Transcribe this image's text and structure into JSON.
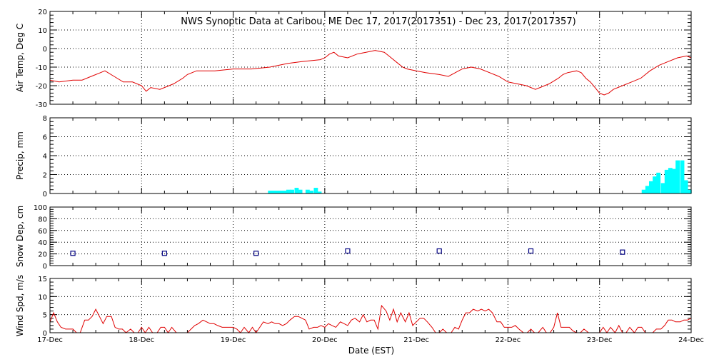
{
  "title": "NWS Synoptic Data at Caribou, ME    Dec 17, 2017(2017351) - Dec 23, 2017(2017357)",
  "x_axis": {
    "label": "Date (EST)",
    "tick_labels": [
      "17-Dec",
      "18-Dec",
      "19-Dec",
      "20-Dec",
      "21-Dec",
      "22-Dec",
      "23-Dec",
      "24-Dec"
    ],
    "range_days": [
      0,
      7
    ]
  },
  "colors": {
    "line": "#e00000",
    "bar": "#00ffff",
    "marker": "#000080",
    "grid": "#000000"
  },
  "chart_data": [
    {
      "type": "line",
      "ylabel": "Air Temp, Deg C",
      "ylim": [
        -30,
        20
      ],
      "yticks": [
        -30,
        -20,
        -10,
        0,
        10,
        20
      ],
      "grid": true,
      "series": [
        {
          "x": [
            0,
            0.1,
            0.25,
            0.35,
            0.45,
            0.55,
            0.6,
            0.7,
            0.8,
            0.9,
            1.0,
            1.05,
            1.1,
            1.2,
            1.3,
            1.35,
            1.45,
            1.5,
            1.6,
            1.7,
            1.8,
            2.0,
            2.2,
            2.4,
            2.5,
            2.6,
            2.75,
            2.95,
            3.0,
            3.05,
            3.1,
            3.15,
            3.25,
            3.35,
            3.45,
            3.55,
            3.65,
            3.7,
            3.8,
            3.85,
            3.9,
            4.0,
            4.1,
            4.25,
            4.35,
            4.5,
            4.6,
            4.7,
            4.8,
            4.9,
            5.0,
            5.1,
            5.2,
            5.3,
            5.35,
            5.45,
            5.55,
            5.6,
            5.65,
            5.75,
            5.8,
            5.85,
            5.9,
            5.95,
            6.0,
            6.05,
            6.1,
            6.15,
            6.25,
            6.35,
            6.45,
            6.55,
            6.65,
            6.75,
            6.85,
            6.95,
            7.0
          ],
          "y": [
            -17,
            -18,
            -17,
            -17,
            -15,
            -13,
            -12,
            -15,
            -18,
            -18,
            -20,
            -23,
            -21,
            -22,
            -20,
            -19,
            -16,
            -14,
            -12,
            -12,
            -12,
            -11,
            -11,
            -10,
            -9,
            -8,
            -7,
            -6,
            -5,
            -3,
            -2,
            -4,
            -5,
            -3,
            -2,
            -1,
            -2,
            -4,
            -8,
            -10,
            -11,
            -12,
            -13,
            -14,
            -15,
            -11,
            -10,
            -11,
            -13,
            -15,
            -18,
            -19,
            -20,
            -22,
            -21,
            -19,
            -16,
            -14,
            -13,
            -12,
            -13,
            -16,
            -18,
            -21,
            -24,
            -25,
            -24,
            -22,
            -20,
            -18,
            -16,
            -12,
            -9,
            -7,
            -5,
            -4,
            -5
          ]
        }
      ]
    },
    {
      "type": "bar",
      "ylabel": "Precip, mm",
      "ylim": [
        0,
        8
      ],
      "yticks": [
        0,
        2,
        4,
        6,
        8
      ],
      "grid": true,
      "bar_width_days": 0.04167,
      "x": [
        2.38,
        2.42,
        2.46,
        2.5,
        2.54,
        2.58,
        2.62,
        2.67,
        2.71,
        2.79,
        2.83,
        2.88,
        2.92,
        6.46,
        6.5,
        6.54,
        6.58,
        6.62,
        6.67,
        6.71,
        6.75,
        6.79,
        6.83,
        6.88,
        6.92,
        6.96
      ],
      "values": [
        0.3,
        0.3,
        0.3,
        0.3,
        0.3,
        0.4,
        0.4,
        0.6,
        0.4,
        0.4,
        0.3,
        0.6,
        0.2,
        0.4,
        0.8,
        1.3,
        1.8,
        2.2,
        1.1,
        2.5,
        2.7,
        2.6,
        3.5,
        3.5,
        1.4,
        0.4
      ]
    },
    {
      "type": "scatter",
      "ylabel": "Snow Dep, cm",
      "ylim": [
        0,
        100
      ],
      "yticks": [
        0,
        20,
        40,
        60,
        80,
        100
      ],
      "grid": true,
      "x": [
        0.25,
        1.25,
        2.25,
        3.25,
        4.25,
        5.25,
        6.25
      ],
      "y": [
        21,
        21,
        21,
        25,
        25,
        25,
        23
      ]
    },
    {
      "type": "line",
      "ylabel": "Wind Spd, m/s",
      "ylim": [
        0,
        15
      ],
      "yticks": [
        0,
        5,
        10,
        15
      ],
      "grid": true,
      "series": [
        {
          "x": [
            0,
            0.04,
            0.08,
            0.12,
            0.17,
            0.21,
            0.25,
            0.29,
            0.33,
            0.38,
            0.42,
            0.46,
            0.5,
            0.54,
            0.58,
            0.62,
            0.67,
            0.71,
            0.75,
            0.79,
            0.83,
            0.88,
            0.92,
            0.96,
            1.0,
            1.04,
            1.08,
            1.12,
            1.17,
            1.21,
            1.25,
            1.29,
            1.33,
            1.38,
            1.42,
            1.46,
            1.5,
            1.54,
            1.58,
            1.62,
            1.67,
            1.71,
            1.75,
            1.79,
            1.83,
            1.88,
            1.92,
            1.96,
            2.0,
            2.04,
            2.08,
            2.12,
            2.17,
            2.21,
            2.25,
            2.29,
            2.33,
            2.38,
            2.42,
            2.46,
            2.5,
            2.54,
            2.58,
            2.62,
            2.67,
            2.71,
            2.75,
            2.79,
            2.83,
            2.88,
            2.92,
            2.96,
            3.0,
            3.04,
            3.08,
            3.12,
            3.17,
            3.21,
            3.25,
            3.29,
            3.33,
            3.38,
            3.42,
            3.46,
            3.5,
            3.54,
            3.58,
            3.62,
            3.67,
            3.71,
            3.75,
            3.79,
            3.83,
            3.88,
            3.92,
            3.96,
            4.0,
            4.04,
            4.08,
            4.12,
            4.17,
            4.21,
            4.25,
            4.29,
            4.33,
            4.38,
            4.42,
            4.46,
            4.5,
            4.54,
            4.58,
            4.62,
            4.67,
            4.71,
            4.75,
            4.79,
            4.83,
            4.88,
            4.92,
            4.96,
            5.0,
            5.04,
            5.08,
            5.12,
            5.17,
            5.21,
            5.25,
            5.29,
            5.33,
            5.38,
            5.42,
            5.46,
            5.5,
            5.54,
            5.58,
            5.62,
            5.67,
            5.71,
            5.75,
            5.79,
            5.83,
            5.88,
            5.92,
            5.96,
            6.0,
            6.04,
            6.08,
            6.12,
            6.17,
            6.21,
            6.25,
            6.29,
            6.33,
            6.38,
            6.42,
            6.46,
            6.5,
            6.54,
            6.58,
            6.62,
            6.67,
            6.71,
            6.75,
            6.79,
            6.83,
            6.88,
            6.92,
            6.96,
            7.0
          ],
          "y": [
            3,
            5.5,
            3,
            1.5,
            1,
            1,
            1,
            0,
            0,
            3.5,
            3.5,
            4.5,
            6.5,
            4.5,
            2.5,
            4.5,
            4.5,
            1.5,
            1,
            1,
            0,
            1,
            0,
            0,
            1.5,
            0,
            1.5,
            0,
            0,
            1.5,
            1.5,
            0,
            1.5,
            0,
            0,
            0,
            0,
            1,
            2,
            2.5,
            3.5,
            3,
            2.5,
            2.5,
            2,
            1.5,
            1.5,
            1.5,
            1.5,
            1,
            0,
            1.5,
            0,
            1.5,
            0,
            1.5,
            3,
            2.5,
            3,
            2.5,
            2.5,
            2,
            2.5,
            3.5,
            4.5,
            4.5,
            4,
            3.5,
            1,
            1.5,
            1.5,
            2,
            1.5,
            2.5,
            2,
            1.5,
            3,
            2.5,
            2,
            3.5,
            4,
            3,
            5,
            3,
            3.5,
            3.5,
            1,
            7.5,
            6,
            3.5,
            6.5,
            3,
            5.5,
            3,
            5.5,
            2,
            3,
            4,
            4,
            3,
            1.5,
            0,
            0,
            1,
            0,
            0,
            1.5,
            1,
            3.5,
            5.5,
            5.5,
            6.5,
            6,
            6.5,
            6,
            6.5,
            5.5,
            3,
            3,
            1.5,
            1.5,
            1.5,
            2,
            1,
            0,
            0,
            1,
            0,
            0,
            1.5,
            0,
            0,
            1.5,
            5.5,
            1.5,
            1.5,
            1.5,
            0.5,
            0,
            0,
            1,
            0,
            0,
            0,
            0,
            1.5,
            0,
            1.5,
            0,
            2,
            0,
            0,
            1.5,
            0,
            1.5,
            1.5,
            0,
            0,
            0,
            1,
            1,
            2,
            3.5,
            3.5,
            3,
            3,
            3.5,
            3.5,
            4
          ]
        }
      ]
    }
  ]
}
